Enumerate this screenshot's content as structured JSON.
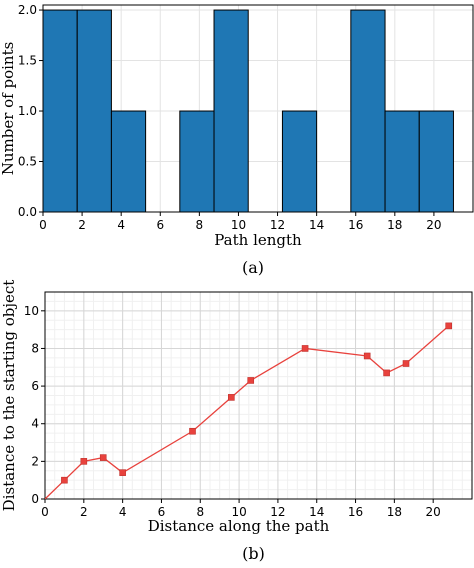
{
  "chart_data": [
    {
      "type": "bar",
      "panel_label": "(a)",
      "xlabel": "Path length",
      "ylabel": "Number of points",
      "xlim": [
        0,
        22
      ],
      "ylim": [
        0,
        2.05
      ],
      "xticks": [
        0,
        2,
        4,
        6,
        8,
        10,
        12,
        14,
        16,
        18,
        20
      ],
      "yticks": [
        0.0,
        0.5,
        1.0,
        1.5,
        2.0
      ],
      "grid": true,
      "bar_color": "#1f77b4",
      "bins": [
        {
          "x0": 0.0,
          "x1": 1.75,
          "value": 2
        },
        {
          "x0": 1.75,
          "x1": 3.5,
          "value": 2
        },
        {
          "x0": 3.5,
          "x1": 5.25,
          "value": 1
        },
        {
          "x0": 7.0,
          "x1": 8.75,
          "value": 1
        },
        {
          "x0": 8.75,
          "x1": 10.5,
          "value": 2
        },
        {
          "x0": 12.25,
          "x1": 14.0,
          "value": 1
        },
        {
          "x0": 15.75,
          "x1": 17.5,
          "value": 2
        },
        {
          "x0": 17.5,
          "x1": 19.25,
          "value": 1
        },
        {
          "x0": 19.25,
          "x1": 21.0,
          "value": 1
        }
      ]
    },
    {
      "type": "line",
      "panel_label": "(b)",
      "xlabel": "Distance along the path",
      "ylabel": "Distance to the starting object",
      "xlim": [
        0,
        22
      ],
      "ylim": [
        0,
        11
      ],
      "xticks": [
        0,
        2,
        4,
        6,
        8,
        10,
        12,
        14,
        16,
        18,
        20
      ],
      "yticks": [
        0,
        2,
        4,
        6,
        8,
        10
      ],
      "grid": true,
      "line_color": "#e8423d",
      "x": [
        0,
        1.0,
        2.0,
        3.0,
        4.0,
        7.6,
        9.6,
        10.6,
        13.4,
        16.6,
        17.6,
        18.6,
        20.8
      ],
      "y": [
        0,
        1.0,
        2.0,
        2.2,
        1.4,
        3.6,
        5.4,
        6.3,
        8.0,
        7.6,
        6.7,
        7.2,
        9.2
      ]
    }
  ]
}
